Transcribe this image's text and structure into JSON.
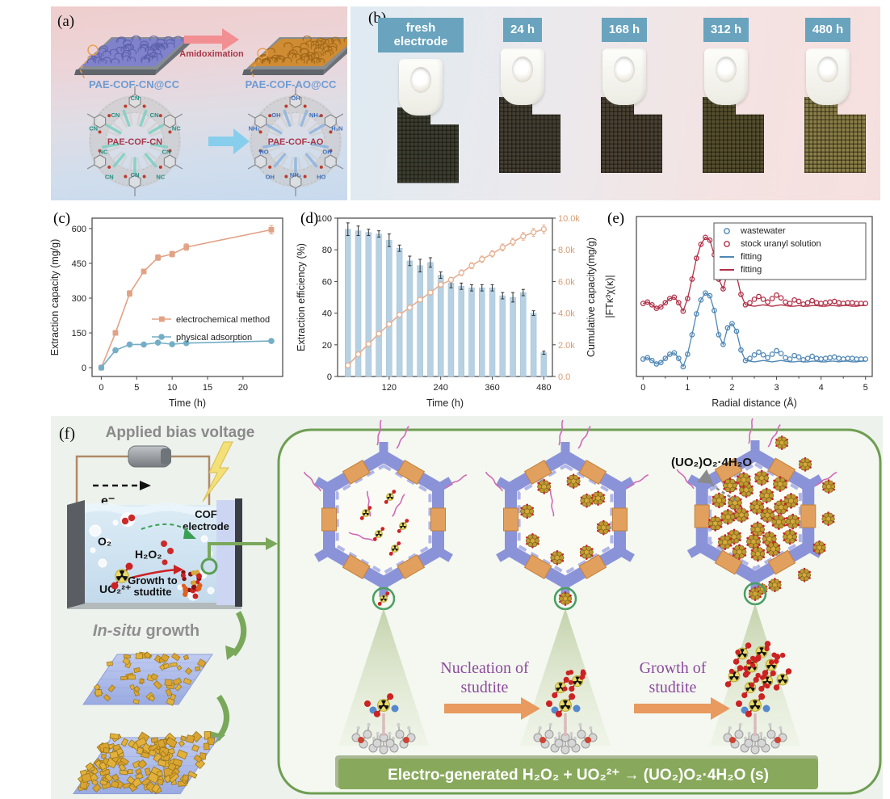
{
  "panel_a": {
    "label": "(a)",
    "arrow_label": "Amidoximation",
    "film_left_label": "PAE-COF-CN@CC",
    "film_right_label": "PAE-COF-AO@CC",
    "ring_left_label": "PAE-COF-CN",
    "ring_right_label": "PAE-COF-AO",
    "left_groups": [
      "CN",
      "CN",
      "NC",
      "CN",
      "NC",
      "CN",
      "CN",
      "NC",
      "CN",
      "CN"
    ],
    "right_groups": [
      "OH",
      "NH₂",
      "H₂N",
      "OH",
      "HO",
      "NH₂",
      "OH",
      "HO",
      "NH₂",
      "OH"
    ]
  },
  "panel_b": {
    "label": "(b)",
    "samples": [
      {
        "label": "fresh electrode",
        "mesh_color": "#3c3e31"
      },
      {
        "label": "24 h",
        "mesh_color": "#453f33"
      },
      {
        "label": "168 h",
        "mesh_color": "#4a4133"
      },
      {
        "label": "312 h",
        "mesh_color": "#57502f"
      },
      {
        "label": "480 h",
        "mesh_color": "#8b7f48"
      }
    ]
  },
  "panel_c": {
    "label": "(c)"
  },
  "panel_d": {
    "label": "(d)"
  },
  "panel_e": {
    "label": "(e)"
  },
  "panel_f": {
    "label": "(f)",
    "applied_bias": "Applied bias voltage",
    "electron": "e⁻",
    "o2": "O₂",
    "h2o2": "H₂O₂",
    "cof_line1": "COF",
    "cof_line2": "electrode",
    "growth_to_1": "Growth to",
    "growth_to_2": "studtite",
    "uo2": "UO₂²⁺",
    "insitu_italic": "In-situ",
    "insitu_rest": " growth",
    "nucleation_1": "Nucleation of",
    "nucleation_2": "studtite",
    "growth_1": "Growth of",
    "growth_2": "studtite",
    "product": "(UO₂)O₂·4H₂O",
    "equation": "Electro-generated H₂O₂ + UO₂²⁺ →  (UO₂)O₂·4H₂O (s)"
  },
  "chart_data": [
    {
      "id": "c",
      "type": "line",
      "xlabel": "Time (h)",
      "ylabel": "Extraction capacity (mg/g)",
      "xlim": [
        -1.3,
        25.6
      ],
      "ylim": [
        -38,
        645
      ],
      "xticks": [
        0,
        5,
        10,
        15,
        20
      ],
      "yticks": [
        0,
        150,
        300,
        450,
        600
      ],
      "series": [
        {
          "name": "electrochemical method",
          "color": "#e2a285",
          "marker": "square",
          "x": [
            0,
            2,
            4,
            6,
            8,
            10,
            12,
            24
          ],
          "y": [
            0,
            150,
            320,
            415,
            475,
            490,
            520,
            595
          ],
          "yerr": [
            4,
            10,
            12,
            10,
            12,
            12,
            14,
            18
          ]
        },
        {
          "name": "physical adsorption",
          "color": "#74aec6",
          "marker": "circle",
          "x": [
            0,
            2,
            4,
            6,
            8,
            10,
            12,
            24
          ],
          "y": [
            0,
            75,
            100,
            100,
            108,
            101,
            106,
            115
          ],
          "yerr": [
            2,
            3,
            3,
            3,
            4,
            3,
            4,
            5
          ]
        }
      ]
    },
    {
      "id": "d",
      "type": "bar-line",
      "xlabel": "Time (h)",
      "ylabel_left": "Extraction efficiency (%)",
      "ylabel_right": "Cumulative capacity(mg/g)",
      "xlim": [
        0,
        500
      ],
      "ylim_left": [
        0,
        100
      ],
      "ylim_right": [
        0,
        10000
      ],
      "xticks": [
        120,
        240,
        360,
        480
      ],
      "yticks_left": [
        0,
        20,
        40,
        60,
        80,
        100
      ],
      "yticks_right": [
        0,
        2000,
        4000,
        6000,
        8000,
        10000
      ],
      "yticks_right_labels": [
        "0.0",
        "2.0k",
        "4.0k",
        "6.0k",
        "8.0k",
        "10.0k"
      ],
      "bar_color": "#b7d1e3",
      "line_color": "#e5b092",
      "categories": [
        24,
        48,
        72,
        96,
        120,
        144,
        168,
        192,
        216,
        240,
        264,
        288,
        312,
        336,
        360,
        384,
        408,
        432,
        456,
        480
      ],
      "efficiency": [
        93,
        92,
        91,
        90,
        86,
        81,
        73,
        70,
        72,
        64,
        59,
        57,
        56,
        56,
        56,
        51,
        50,
        53,
        40,
        15
      ],
      "efficiency_err": [
        4,
        3,
        2,
        2,
        4,
        2,
        3,
        4,
        3,
        2,
        3,
        2,
        2,
        2,
        2,
        2,
        3,
        2,
        1.5,
        1
      ],
      "cumulative": [
        700,
        1400,
        2050,
        2700,
        3300,
        3900,
        4350,
        4850,
        5300,
        5800,
        6100,
        6550,
        7000,
        7400,
        7750,
        8150,
        8500,
        8850,
        9100,
        9300
      ],
      "cumulative_err": [
        100,
        100,
        120,
        120,
        130,
        140,
        150,
        150,
        160,
        170,
        170,
        180,
        190,
        200,
        200,
        220,
        230,
        240,
        250,
        260
      ]
    },
    {
      "id": "e",
      "type": "line",
      "xlabel": "Radial distance (Å)",
      "ylabel": "|FTκ³χ(κ)|",
      "xlim": [
        -0.15,
        5.15
      ],
      "ylim": [
        -0.2,
        2.1
      ],
      "xticks": [
        0,
        1,
        2,
        3,
        4,
        5
      ],
      "profile_x_start": 0,
      "profile_x_step": 0.1,
      "profile_y": [
        0.05,
        0.07,
        0.03,
        -0.02,
        0.0,
        0.06,
        0.12,
        0.14,
        0.06,
        -0.06,
        0.12,
        0.4,
        0.7,
        0.9,
        1.0,
        0.96,
        0.75,
        0.4,
        0.26,
        0.5,
        0.56,
        0.45,
        0.18,
        0.03,
        0.06,
        0.11,
        0.15,
        0.11,
        0.07,
        0.12,
        0.17,
        0.13,
        0.07,
        0.05,
        0.1,
        0.08,
        0.04,
        0.06,
        0.09,
        0.06,
        0.05,
        0.06,
        0.07,
        0.08,
        0.06,
        0.05,
        0.06,
        0.06,
        0.05,
        0.05,
        0.05
      ],
      "fit_y": [
        0.05,
        0.07,
        0.03,
        -0.02,
        0.0,
        0.06,
        0.12,
        0.14,
        0.06,
        -0.06,
        0.12,
        0.4,
        0.7,
        0.9,
        1.0,
        0.96,
        0.75,
        0.4,
        0.26,
        0.5,
        0.56,
        0.45,
        0.18,
        0.03,
        0.02,
        0.01,
        0.02,
        0.03,
        0.02,
        0.01,
        0.02,
        0.03,
        0.02,
        0.01,
        0.01,
        0.02,
        0.01,
        0.01,
        0.02,
        0.02,
        0.01,
        0.01,
        0.02,
        0.02,
        0.01,
        0.02,
        0.02,
        0.01,
        0.01,
        0.02,
        0.02
      ],
      "series": [
        {
          "name": "wastewater",
          "color": "#4f87b5",
          "offset": 0
        },
        {
          "name": "stock uranyl solution",
          "color": "#b13047",
          "offset": 0.8
        }
      ],
      "legend": [
        {
          "label": "wastewater",
          "type": "marker",
          "color": "#4f87b5"
        },
        {
          "label": "stock uranyl solution",
          "type": "marker",
          "color": "#b13047"
        },
        {
          "label": "fitting",
          "type": "line",
          "color": "#4f87b5"
        },
        {
          "label": "fitting",
          "type": "line",
          "color": "#b13047"
        }
      ]
    }
  ]
}
